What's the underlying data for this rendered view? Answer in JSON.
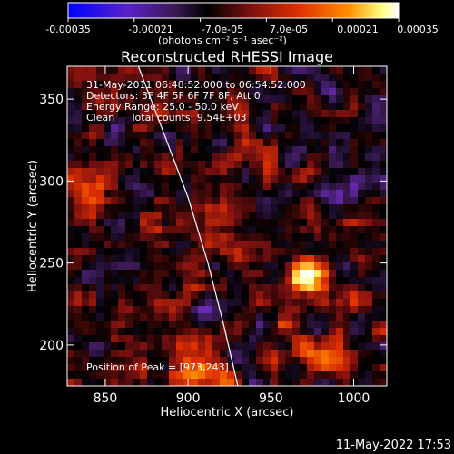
{
  "chart_data": {
    "type": "heatmap",
    "title": "Reconstructed RHESSI Image",
    "xlabel": "Heliocentric X (arcsec)",
    "ylabel": "Heliocentric Y (arcsec)",
    "xlim": [
      827,
      1020
    ],
    "ylim": [
      175,
      370
    ],
    "xticks": [
      "850",
      "900",
      "950",
      "1000"
    ],
    "xtick_values": [
      850,
      900,
      950,
      1000
    ],
    "yticks": [
      "200",
      "250",
      "300",
      "350"
    ],
    "ytick_values": [
      200,
      250,
      300,
      350
    ],
    "colorbar": {
      "range": [
        -0.00035,
        0.00035
      ],
      "ticks": [
        "-0.00035",
        "-0.00021",
        "-7.0e-05",
        "7.0e-05",
        "0.00021",
        "0.00035"
      ],
      "unit_label": "(photons cm⁻² s⁻¹ asec⁻²)",
      "colormap": [
        "#0000ff",
        "#6a2ab8",
        "#3a1a55",
        "#000000",
        "#7a1010",
        "#e03000",
        "#ff9000",
        "#ffff80",
        "#ffffff"
      ]
    },
    "annotations": {
      "time_range": "31-May-2011 06:48:52.000 to 06:54:52.000",
      "detectors": "Detectors: 3F 4F 5F 6F 7F 8F, Att 0",
      "energy": "Energy Range: 25.0 - 50.0 keV",
      "clean": "Clean     Total counts: 9.54E+03",
      "peak": "Position of Peak = [973,243]"
    },
    "limb_curve": [
      [
        870,
        370
      ],
      [
        885,
        330
      ],
      [
        900,
        290
      ],
      [
        912,
        250
      ],
      [
        922,
        210
      ],
      [
        930,
        175
      ]
    ],
    "hot_spots": [
      {
        "x": 973,
        "y": 243,
        "value": 0.00035
      },
      {
        "x": 978,
        "y": 195,
        "value": 0.0003
      },
      {
        "x": 838,
        "y": 290,
        "value": 0.00028
      },
      {
        "x": 905,
        "y": 185,
        "value": 0.00032
      }
    ]
  },
  "footer": {
    "date": "11-May-2022 17:53"
  }
}
